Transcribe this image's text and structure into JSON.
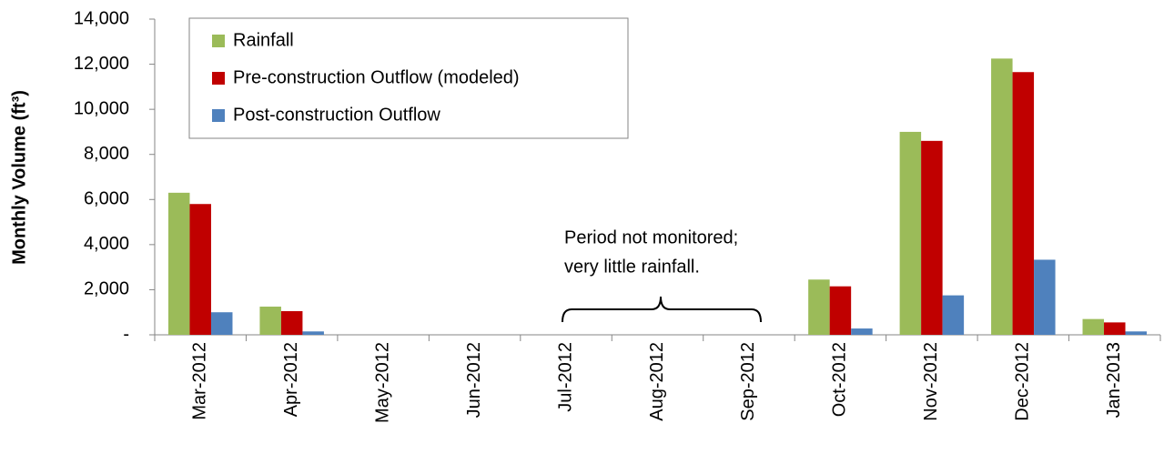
{
  "chart_data": {
    "type": "bar",
    "y_label": "Monthly Volume (ft³)",
    "categories": [
      "Mar-2012",
      "Apr-2012",
      "May-2012",
      "Jun-2012",
      "Jul-2012",
      "Aug-2012",
      "Sep-2012",
      "Oct-2012",
      "Nov-2012",
      "Dec-2012",
      "Jan-2013"
    ],
    "series": [
      {
        "name": "Rainfall",
        "color": "#9bbb59",
        "values": [
          6300,
          1250,
          null,
          null,
          null,
          null,
          null,
          2450,
          9000,
          12250,
          700
        ]
      },
      {
        "name": "Pre-construction Outflow (modeled)",
        "color": "#c00000",
        "values": [
          5800,
          1050,
          null,
          null,
          null,
          null,
          null,
          2150,
          8600,
          11650,
          550
        ]
      },
      {
        "name": "Post-construction Outflow",
        "color": "#4f81bd",
        "values": [
          1000,
          150,
          null,
          null,
          null,
          null,
          null,
          280,
          1750,
          3330,
          150
        ]
      }
    ],
    "ylim": [
      0,
      14000
    ],
    "yticks": [
      {
        "value": 0,
        "label": "-"
      },
      {
        "value": 2000,
        "label": "2,000"
      },
      {
        "value": 4000,
        "label": "4,000"
      },
      {
        "value": 6000,
        "label": "6,000"
      },
      {
        "value": 8000,
        "label": "8,000"
      },
      {
        "value": 10000,
        "label": "10,000"
      },
      {
        "value": 12000,
        "label": "12,000"
      },
      {
        "value": 14000,
        "label": "14,000"
      }
    ],
    "annotation": [
      "Period not monitored;",
      "very little rainfall."
    ],
    "legend": "upper left"
  }
}
